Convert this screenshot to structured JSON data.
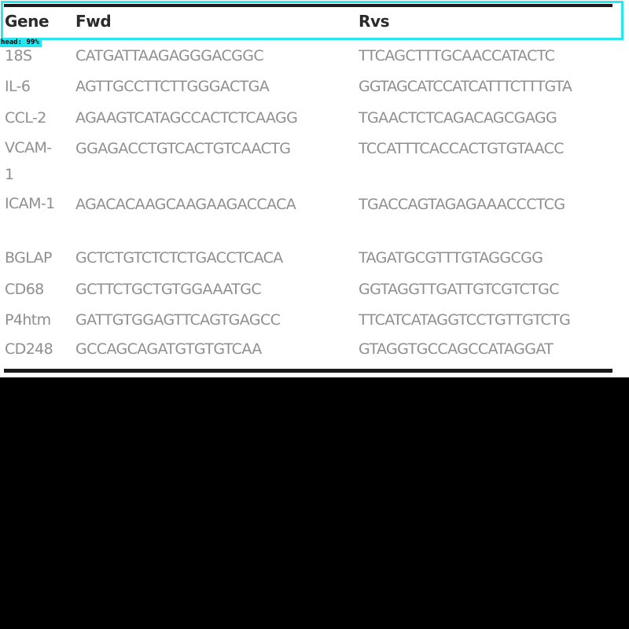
{
  "table": {
    "headers": {
      "gene": "Gene",
      "fwd": "Fwd",
      "rvs": "Rvs"
    },
    "rows": [
      {
        "gene": "18S",
        "fwd": "CATGATTAAGAGGGACGGC",
        "rvs": "TTCAGCTTTGCAACCATACTC"
      },
      {
        "gene": "IL-6",
        "fwd": "AGTTGCCTTCTTGGGACTGA",
        "rvs": "GGTAGCATCCATCATTTCTTTGTA"
      },
      {
        "gene": "CCL-2",
        "fwd": "AGAAGTCATAGCCACTCTCAAGG",
        "rvs": "TGAACTCTCAGACAGCGAGG"
      },
      {
        "gene": "VCAM-1",
        "fwd": "GGAGACCTGTCACTGTCAACTG",
        "rvs": "TCCATTTCACCACTGTGTAACC"
      },
      {
        "gene": "ICAM-1",
        "fwd": "AGACACAAGCAAGAAGACCACA",
        "rvs": "TGACCAGTAGAGAAACCCTCG"
      },
      {
        "gene": "BGLAP",
        "fwd": "GCTCTGTCTCTCTGACCTCACA",
        "rvs": "TAGATGCGTTTGTAGGCGG"
      },
      {
        "gene": "CD68",
        "fwd": "GCTTCTGCTGTGGAAATGC",
        "rvs": "GGTAGGTTGATTGTCGTCTGC"
      },
      {
        "gene": "P4htm",
        "fwd": "GATTGTGGAGTTCAGTGAGCC",
        "rvs": "TTCATCATAGGTCCTGTTGTCTG"
      },
      {
        "gene": "CD248",
        "fwd": "GCCAGCAGATGTGTGTCAA",
        "rvs": "GTAGGTGCCAGCCATAGGAT"
      }
    ]
  },
  "overlay": {
    "label": "head: 99%"
  }
}
